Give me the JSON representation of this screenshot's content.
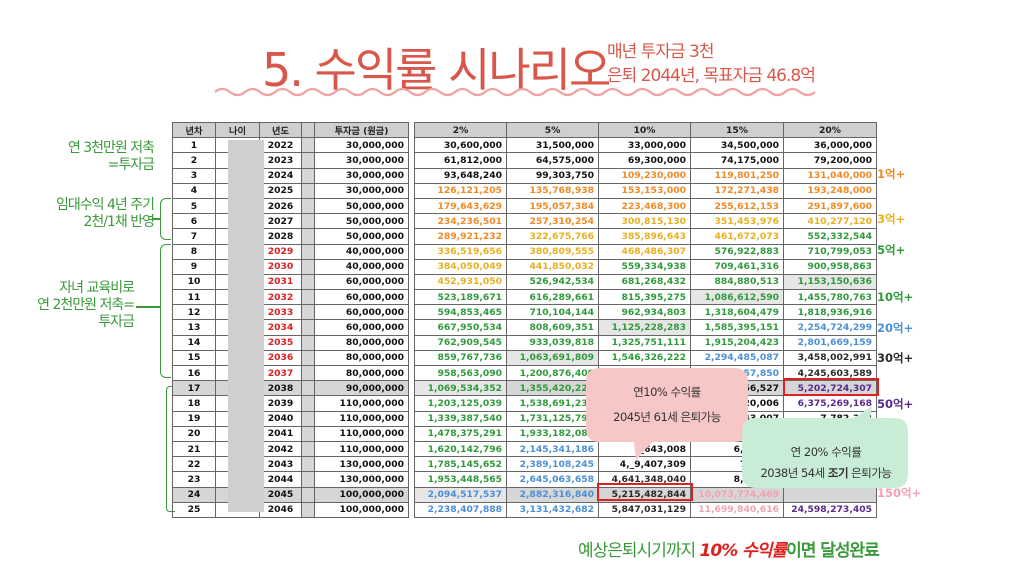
{
  "title": "5. 수익률 시나리오",
  "subtitle": {
    "line1": "매년 투자금 3천",
    "line2a": "은퇴 2044년,",
    "line2b": "목표자금 46.8억"
  },
  "side_notes": {
    "note1": [
      "연 3천만원 저축",
      "=투자금"
    ],
    "note2": [
      "임대수익 4년 주기",
      "2천/1채 반영"
    ],
    "note3": [
      "자녀 교육비로",
      "연 2천만원 저축=",
      "투자금"
    ]
  },
  "left_headers": [
    "년차",
    "나이",
    "년도",
    "",
    "투자금 (원금)"
  ],
  "right_headers": [
    "2%",
    "5%",
    "10%",
    "15%",
    "20%"
  ],
  "rows": [
    {
      "n": "1",
      "age": "",
      "year": "2022",
      "inv": "30,000,000",
      "v": [
        "30,600,000",
        "31,500,000",
        "33,000,000",
        "34,500,000",
        "36,000,000"
      ]
    },
    {
      "n": "2",
      "age": "",
      "year": "2023",
      "inv": "30,000,000",
      "v": [
        "61,812,000",
        "64,575,000",
        "69,300,000",
        "74,175,000",
        "79,200,000"
      ]
    },
    {
      "n": "3",
      "age": "",
      "year": "2024",
      "inv": "30,000,000",
      "v": [
        "93,648,240",
        "99,303,750",
        "109,230,000",
        "119,801,250",
        "131,040,000"
      ]
    },
    {
      "n": "4",
      "age": "",
      "year": "2025",
      "inv": "30,000,000",
      "v": [
        "126,121,205",
        "135,768,938",
        "153,153,000",
        "172,271,438",
        "193,248,000"
      ]
    },
    {
      "n": "5",
      "age": "",
      "year": "2026",
      "inv": "50,000,000",
      "v": [
        "179,643,629",
        "195,057,384",
        "223,468,300",
        "255,612,153",
        "291,897,600"
      ]
    },
    {
      "n": "6",
      "age": "",
      "year": "2027",
      "inv": "50,000,000",
      "v": [
        "234,236,501",
        "257,310,254",
        "300,815,130",
        "351,453,976",
        "410,277,120"
      ]
    },
    {
      "n": "7",
      "age": "",
      "year": "2028",
      "inv": "50,000,000",
      "v": [
        "289,921,232",
        "322,675,766",
        "385,896,643",
        "461,672,073",
        "552,332,544"
      ]
    },
    {
      "n": "8",
      "age": "",
      "year": "2029",
      "inv": "40,000,000",
      "v": [
        "336,519,656",
        "380,809,555",
        "468,486,307",
        "576,922,883",
        "710,799,053"
      ]
    },
    {
      "n": "9",
      "age": "",
      "year": "2030",
      "inv": "40,000,000",
      "v": [
        "384,050,049",
        "441,850,032",
        "559,334,938",
        "709,461,316",
        "900,958,863"
      ]
    },
    {
      "n": "10",
      "age": "",
      "year": "2031",
      "inv": "60,000,000",
      "v": [
        "452,931,050",
        "526,942,534",
        "681,268,432",
        "884,880,513",
        "1,153,150,636"
      ]
    },
    {
      "n": "11",
      "age": "",
      "year": "2032",
      "inv": "60,000,000",
      "v": [
        "523,189,671",
        "616,289,661",
        "815,395,275",
        "1,086,612,590",
        "1,455,780,763"
      ]
    },
    {
      "n": "12",
      "age": "",
      "year": "2033",
      "inv": "60,000,000",
      "v": [
        "594,853,465",
        "710,104,144",
        "962,934,803",
        "1,318,604,479",
        "1,818,936,916"
      ]
    },
    {
      "n": "13",
      "age": "",
      "year": "2034",
      "inv": "60,000,000",
      "v": [
        "667,950,534",
        "808,609,351",
        "1,125,228,283",
        "1,585,395,151",
        "2,254,724,299"
      ]
    },
    {
      "n": "14",
      "age": "",
      "year": "2035",
      "inv": "80,000,000",
      "v": [
        "762,909,545",
        "933,039,818",
        "1,325,751,111",
        "1,915,204,423",
        "2,801,669,159"
      ]
    },
    {
      "n": "15",
      "age": "",
      "year": "2036",
      "inv": "80,000,000",
      "v": [
        "859,767,736",
        "1,063,691,809",
        "1,546,326,222",
        "2,294,485,087",
        "3,458,002,991"
      ]
    },
    {
      "n": "16",
      "age": "",
      "year": "2037",
      "inv": "80,000,000",
      "v": [
        "958,563,090",
        "1,200,876,400",
        "",
        "2,730,657,850",
        "4,245,603,589"
      ]
    },
    {
      "n": "17",
      "age": "",
      "year": "2038",
      "inv": "90,000,000",
      "v": [
        "1,069,534,352",
        "1,355,420,220",
        "",
        "_756,527",
        "5,202,724,307"
      ]
    },
    {
      "n": "18",
      "age": "",
      "year": "2039",
      "inv": "110,000,000",
      "v": [
        "1,203,125,039",
        "1,538,691,231",
        "",
        "_820,006",
        "6,375,269,168"
      ]
    },
    {
      "n": "19",
      "age": "",
      "year": "2040",
      "inv": "110,000,000",
      "v": [
        "1,339,387,540",
        "1,731,125,792",
        "",
        "_843,007",
        "7,782,323"
      ]
    },
    {
      "n": "20",
      "age": "",
      "year": "2041",
      "inv": "110,000,000",
      "v": [
        "1,478,375,291",
        "1,933,182,082",
        "",
        "_619,458",
        ""
      ]
    },
    {
      "n": "21",
      "age": "",
      "year": "2042",
      "inv": "110,000,000",
      "v": [
        "1,620,142,796",
        "2,145,341,186",
        "_643,008",
        "6,305,01",
        ""
      ]
    },
    {
      "n": "22",
      "age": "",
      "year": "2043",
      "inv": "130,000,000",
      "v": [
        "1,785,145,652",
        "2,389,108,245",
        "4,_9,407,309",
        "7,400,2",
        ""
      ]
    },
    {
      "n": "23",
      "age": "",
      "year": "2044",
      "inv": "130,000,000",
      "v": [
        "1,953,448,565",
        "2,645,063,658",
        "4,641,348,040",
        "8,659,80",
        ""
      ]
    },
    {
      "n": "24",
      "age": "",
      "year": "2045",
      "inv": "100,000,000",
      "v": [
        "2,094,517,537",
        "2,882,316,840",
        "5,215,482,844",
        "10,073,774,469",
        ""
      ]
    },
    {
      "n": "25",
      "age": "",
      "year": "2046",
      "inv": "100,000,000",
      "v": [
        "2,238,407,888",
        "3,131,432,682",
        "5,847,031,129",
        "11,699,840,616",
        "24,598,273,405"
      ]
    }
  ],
  "milestones": [
    "1억+",
    "3억+",
    "5억+",
    "10억+",
    "20억+",
    "30억+",
    "50억+",
    "150억+"
  ],
  "bubble1": {
    "line1": "연10% 수익률",
    "line2": "2045년 61세 은퇴가능"
  },
  "bubble2": {
    "line1": "연 20% 수익률",
    "line2a": "2038년 54세 ",
    "line2b": "조기",
    "line2c": " 은퇴가능"
  },
  "footer": {
    "part1": "예상은퇴시기까지 ",
    "part2": "10% 수익률",
    "part3": "이면 달성완료"
  },
  "colors": {
    "title": "#d9574a",
    "green_note": "#3a9a3a",
    "red_year": "#e02020",
    "orange": "#f08a24",
    "yellow": "#e8b020",
    "green": "#2f9a3a",
    "blue": "#4a8fd8",
    "navy": "#2a2a2a",
    "purple": "#5a2a8a",
    "pink": "#f4a0b0",
    "bubble_pink": "#f7c6c6",
    "bubble_green": "#c9ecd6"
  }
}
